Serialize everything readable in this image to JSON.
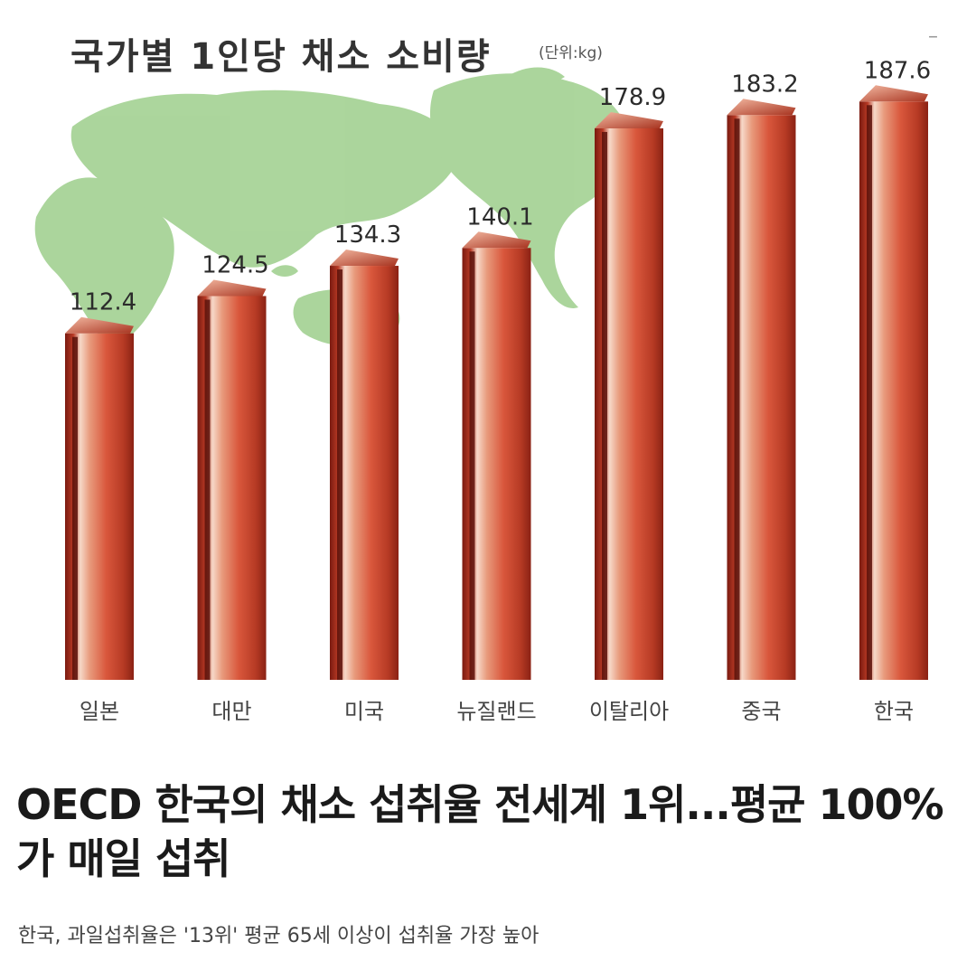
{
  "chart_data": {
    "type": "bar",
    "title": "국가별 1인당 채소 소비량",
    "unit": "(단위:kg)",
    "categories": [
      "일본",
      "대만",
      "미국",
      "뉴질랜드",
      "이탈리아",
      "중국",
      "한국"
    ],
    "values": [
      112.4,
      124.5,
      134.3,
      140.1,
      178.9,
      183.2,
      187.6
    ],
    "value_labels": [
      "112.4",
      "124.5",
      "134.3",
      "140.1",
      "178.9",
      "183.2",
      "187.6"
    ],
    "bar_color": "#d9573c",
    "map_color": "#9fcf8e"
  },
  "corner_mark": "–",
  "headline": "OECD 한국의 채소 섭취율 전세계 1위...평균 100%가 매일 섭취",
  "subheadline": "한국, 과일섭취율은 '13위' 평균 65세 이상이 섭취율 가장 높아"
}
